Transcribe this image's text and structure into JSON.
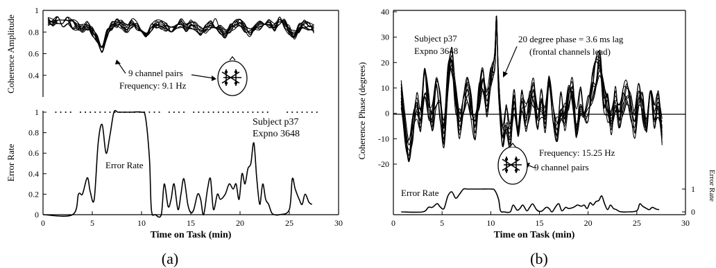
{
  "chart_data": [
    {
      "type": "line",
      "panel_label": "(a)",
      "xlabel": "Time on Task (min)",
      "xlim": [
        0,
        30
      ],
      "xticks": [
        "0",
        "5",
        "10",
        "15",
        "20",
        "25",
        "30"
      ],
      "top": {
        "ylabel": "Coherence Amplitude",
        "ylim": [
          0.2,
          1
        ],
        "yticks": [
          "0.4",
          "0.6",
          "0.8",
          "1"
        ],
        "annotation_lines": [
          "9 channel pairs",
          "Frequency: 9.1 Hz"
        ],
        "series": [
          {
            "x": [
              0.5,
              1,
              1.5,
              2,
              2.5,
              3,
              3.5,
              4,
              4.5,
              5,
              5.5,
              6,
              6.5,
              7,
              7.5,
              8,
              8.5,
              9,
              9.5,
              10,
              10.5,
              11,
              11.5,
              12,
              12.5,
              13,
              13.5,
              14,
              14.5,
              15,
              15.5,
              16,
              16.5,
              17,
              17.5,
              18,
              18.5,
              19,
              19.5,
              20,
              20.5,
              21,
              21.5,
              22,
              22.5,
              23,
              23.5,
              24,
              24.5,
              25,
              25.5,
              26,
              26.5,
              27,
              27.5
            ],
            "y": [
              0.9,
              0.88,
              0.92,
              0.89,
              0.9,
              0.87,
              0.85,
              0.83,
              0.86,
              0.8,
              0.74,
              0.63,
              0.78,
              0.86,
              0.88,
              0.87,
              0.84,
              0.88,
              0.86,
              0.82,
              0.8,
              0.84,
              0.88,
              0.87,
              0.85,
              0.83,
              0.86,
              0.88,
              0.84,
              0.87,
              0.85,
              0.81,
              0.83,
              0.87,
              0.88,
              0.82,
              0.78,
              0.83,
              0.87,
              0.88,
              0.84,
              0.8,
              0.83,
              0.86,
              0.88,
              0.87,
              0.85,
              0.9,
              0.88,
              0.82,
              0.78,
              0.84,
              0.87,
              0.85,
              0.83
            ]
          }
        ]
      },
      "bottom": {
        "ylabel": "Error Rate",
        "ylim": [
          0,
          1
        ],
        "yticks": [
          "0",
          "0.2",
          "0.4",
          "0.6",
          "0.8",
          "1"
        ],
        "series_label": "Error Rate",
        "subject_lines": [
          "Subject p37",
          "Expno 3648"
        ],
        "series": [
          {
            "x": [
              0,
              3,
              3.6,
              4,
              4.5,
              4.8,
              5.2,
              5.6,
              6,
              6.4,
              6.8,
              7.2,
              7.6,
              8,
              9,
              10,
              10.4,
              10.8,
              11,
              11.4,
              12,
              12.3,
              12.7,
              13,
              13.3,
              13.7,
              14,
              14.3,
              14.7,
              15,
              15.3,
              15.7,
              16,
              16.3,
              16.7,
              17,
              17.3,
              17.7,
              18,
              18.5,
              18.9,
              19.3,
              19.6,
              19.9,
              20.2,
              20.5,
              20.8,
              21.1,
              21.4,
              21.7,
              22,
              22.3,
              22.6,
              22.9,
              23.2,
              23.5,
              24,
              25,
              25.3,
              25.6,
              26,
              26.3,
              26.6,
              27,
              27.3
            ],
            "y": [
              0,
              0,
              0.2,
              0.2,
              0.36,
              0.22,
              0.15,
              0.7,
              0.88,
              0.6,
              0.78,
              1,
              1,
              1,
              1,
              1,
              0.95,
              0.55,
              0.05,
              0,
              0,
              0.3,
              0.08,
              0.15,
              0.3,
              0.05,
              0.2,
              0.35,
              0.1,
              0.02,
              0.05,
              0.2,
              0.15,
              0.0,
              0.25,
              0.35,
              0.05,
              0.2,
              0.15,
              0.2,
              0.3,
              0.25,
              0.3,
              0.15,
              0.4,
              0.3,
              0.45,
              0.5,
              0.7,
              0.35,
              0.1,
              0.3,
              0.15,
              0.1,
              0.02,
              0,
              0,
              0.05,
              0.35,
              0.25,
              0.15,
              0.1,
              0.2,
              0.12,
              0.1
            ]
          }
        ]
      }
    },
    {
      "type": "line",
      "panel_label": "(b)",
      "xlabel": "Time on Task (min)",
      "ylabel": "Coherence Phase (degrees)",
      "xlim": [
        0,
        30
      ],
      "ylim": [
        -20,
        40
      ],
      "xticks": [
        "0",
        "5",
        "10",
        "15",
        "20",
        "25",
        "30"
      ],
      "yticks": [
        "-20",
        "-10",
        "0",
        "10",
        "20",
        "30",
        "40"
      ],
      "subject_lines": [
        "Subject p37",
        "Expno 3648"
      ],
      "annotation_lines": [
        "20 degree phase = 3.6 ms lag",
        "(frontal channels lead)"
      ],
      "frequency_label": "Frequency: 15.25 Hz",
      "channel_label": "9 channel pairs",
      "series": [
        {
          "x": [
            0.8,
            1.2,
            1.6,
            2,
            2.4,
            2.8,
            3.2,
            3.6,
            4,
            4.4,
            4.8,
            5.2,
            5.6,
            6,
            6.4,
            6.8,
            7.2,
            7.6,
            8,
            8.4,
            8.8,
            9.2,
            9.6,
            10,
            10.4,
            10.6,
            10.8,
            11.2,
            11.6,
            12,
            12.4,
            12.8,
            13.2,
            13.6,
            14,
            14.4,
            14.8,
            15.2,
            15.6,
            16,
            16.4,
            16.8,
            17.2,
            17.6,
            18,
            18.4,
            18.8,
            19.2,
            19.6,
            20,
            20.4,
            20.8,
            21.2,
            21.6,
            22,
            22.4,
            22.8,
            23.2,
            23.6,
            24,
            24.4,
            24.8,
            25.2,
            25.6,
            26,
            26.4,
            26.8,
            27.2,
            27.6
          ],
          "y": [
            8,
            -6,
            -15,
            -5,
            2,
            -3,
            12,
            4,
            -2,
            8,
            3,
            -8,
            14,
            21,
            6,
            -4,
            3,
            10,
            2,
            -6,
            6,
            12,
            4,
            15,
            22,
            36,
            10,
            -8,
            -2,
            -10,
            4,
            -4,
            6,
            -2,
            3,
            8,
            -3,
            4,
            -2,
            10,
            2,
            -6,
            3,
            -1,
            6,
            8,
            -4,
            5,
            1,
            3,
            9,
            16,
            20,
            7,
            2,
            -4,
            6,
            -2,
            4,
            8,
            2,
            -4,
            6,
            3,
            -2,
            5,
            0,
            4,
            -8
          ]
        }
      ],
      "error_rate": {
        "series_label": "Error Rate",
        "yticks": [
          "0",
          "1"
        ],
        "ylabel": "Error Rate",
        "x": [
          0.8,
          3,
          3.6,
          4,
          4.5,
          4.8,
          5.2,
          5.6,
          6,
          6.4,
          6.8,
          7.2,
          7.6,
          8,
          9,
          10,
          10.4,
          10.8,
          11,
          11.4,
          12,
          12.3,
          12.7,
          13,
          13.3,
          13.7,
          14,
          14.3,
          14.7,
          15,
          15.3,
          15.7,
          16,
          16.3,
          16.7,
          17,
          17.3,
          17.7,
          18,
          18.5,
          18.9,
          19.3,
          19.6,
          19.9,
          20.2,
          20.5,
          20.8,
          21.1,
          21.4,
          21.7,
          22,
          22.3,
          22.6,
          22.9,
          23.2,
          23.5,
          24,
          25,
          25.3,
          25.6,
          26,
          26.3,
          26.6,
          27,
          27.3
        ],
        "y": [
          0,
          0,
          0.2,
          0.2,
          0.36,
          0.22,
          0.15,
          0.7,
          0.88,
          0.6,
          0.78,
          1,
          1,
          1,
          1,
          1,
          0.95,
          0.55,
          0.05,
          0,
          0,
          0.3,
          0.08,
          0.15,
          0.3,
          0.05,
          0.2,
          0.35,
          0.1,
          0.02,
          0.05,
          0.2,
          0.15,
          0.0,
          0.25,
          0.35,
          0.05,
          0.2,
          0.15,
          0.2,
          0.3,
          0.25,
          0.3,
          0.15,
          0.4,
          0.3,
          0.45,
          0.5,
          0.7,
          0.35,
          0.1,
          0.3,
          0.15,
          0.1,
          0.02,
          0,
          0,
          0.05,
          0.35,
          0.25,
          0.15,
          0.1,
          0.2,
          0.12,
          0.1
        ]
      }
    }
  ]
}
